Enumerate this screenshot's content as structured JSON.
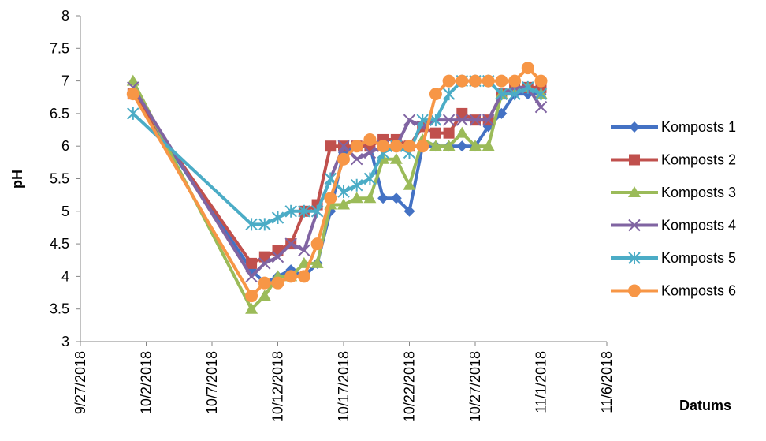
{
  "chart_data": {
    "type": "line",
    "title": "",
    "xlabel": "Datums",
    "ylabel": "pH",
    "ylim": [
      3,
      8
    ],
    "y_ticks": [
      "3",
      "3.5",
      "4",
      "4.5",
      "5",
      "5.5",
      "6",
      "6.5",
      "7",
      "7.5",
      "8"
    ],
    "x_ticks": [
      "9/27/2018",
      "10/2/2018",
      "10/7/2018",
      "10/12/2018",
      "10/17/2018",
      "10/22/2018",
      "10/27/2018",
      "11/1/2018",
      "11/6/2018"
    ],
    "legend_position": "right",
    "grid": false,
    "x": [
      "10/1/2018",
      "10/10/2018",
      "10/11/2018",
      "10/12/2018",
      "10/13/2018",
      "10/14/2018",
      "10/15/2018",
      "10/16/2018",
      "10/17/2018",
      "10/18/2018",
      "10/19/2018",
      "10/20/2018",
      "10/21/2018",
      "10/22/2018",
      "10/23/2018",
      "10/24/2018",
      "10/25/2018",
      "10/26/2018",
      "10/27/2018",
      "10/28/2018",
      "10/29/2018",
      "10/30/2018",
      "10/31/2018",
      "11/1/2018"
    ],
    "series": [
      {
        "name": "Komposts 1",
        "color": "#4472C4",
        "marker": "diamond",
        "values": [
          6.8,
          4.1,
          3.9,
          4.0,
          4.1,
          4.0,
          4.2,
          5.0,
          5.9,
          6.0,
          6.0,
          5.2,
          5.2,
          5.0,
          6.0,
          6.0,
          6.0,
          6.0,
          6.0,
          6.3,
          6.5,
          6.8,
          6.8,
          6.8
        ]
      },
      {
        "name": "Komposts  2",
        "color": "#C0504D",
        "marker": "square",
        "values": [
          6.8,
          4.2,
          4.3,
          4.4,
          4.5,
          5.0,
          5.1,
          6.0,
          6.0,
          6.0,
          6.0,
          6.1,
          6.1,
          6.0,
          6.3,
          6.2,
          6.2,
          6.5,
          6.4,
          6.4,
          6.8,
          6.9,
          6.9,
          6.9
        ]
      },
      {
        "name": "Komposts 3",
        "color": "#9BBB59",
        "marker": "triangle",
        "values": [
          7.0,
          3.5,
          3.7,
          4.0,
          4.0,
          4.2,
          4.2,
          5.1,
          5.1,
          5.2,
          5.2,
          5.8,
          5.8,
          5.4,
          6.1,
          6.0,
          6.0,
          6.2,
          6.0,
          6.0,
          6.8,
          6.9,
          6.9,
          6.8
        ]
      },
      {
        "name": "Komposts 4",
        "color": "#8064A2",
        "marker": "x",
        "values": [
          6.9,
          4.0,
          4.2,
          4.3,
          4.5,
          4.4,
          5.0,
          5.5,
          6.0,
          5.8,
          5.9,
          6.0,
          6.0,
          6.4,
          6.3,
          6.4,
          6.4,
          6.4,
          6.4,
          6.4,
          6.8,
          6.9,
          6.9,
          6.6
        ]
      },
      {
        "name": "Komposts  5",
        "color": "#4BACC6",
        "marker": "star",
        "values": [
          6.5,
          4.8,
          4.8,
          4.9,
          5.0,
          5.0,
          5.0,
          5.5,
          5.3,
          5.4,
          5.5,
          5.9,
          6.0,
          5.9,
          6.4,
          6.4,
          6.8,
          7.0,
          7.0,
          7.0,
          6.8,
          6.8,
          6.9,
          6.8
        ]
      },
      {
        "name": "Komposts 6",
        "color": "#F79646",
        "marker": "circle",
        "values": [
          6.8,
          3.7,
          3.9,
          3.9,
          4.0,
          4.0,
          4.5,
          5.2,
          5.8,
          6.0,
          6.1,
          6.0,
          6.0,
          6.0,
          6.0,
          6.8,
          7.0,
          7.0,
          7.0,
          7.0,
          7.0,
          7.0,
          7.2,
          7.0
        ]
      }
    ]
  }
}
